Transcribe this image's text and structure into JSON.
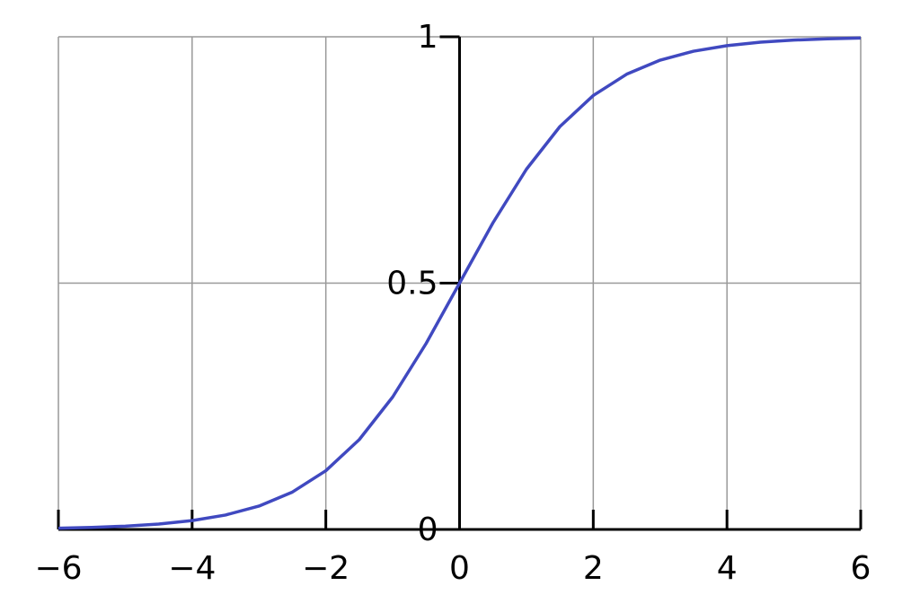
{
  "chart_data": {
    "type": "line",
    "x": [
      -6,
      -5.5,
      -5,
      -4.5,
      -4,
      -3.5,
      -3,
      -2.5,
      -2,
      -1.5,
      -1,
      -0.5,
      0,
      0.5,
      1,
      1.5,
      2,
      2.5,
      3,
      3.5,
      4,
      4.5,
      5,
      5.5,
      6
    ],
    "series": [
      {
        "color": "#4049c0",
        "values": [
          0.0025,
          0.0041,
          0.0067,
          0.011,
          0.018,
          0.0293,
          0.0474,
          0.0759,
          0.1192,
          0.1824,
          0.2689,
          0.3775,
          0.5,
          0.6225,
          0.7311,
          0.8176,
          0.8808,
          0.9241,
          0.9526,
          0.9707,
          0.982,
          0.989,
          0.9933,
          0.9959,
          0.9975
        ]
      }
    ],
    "xlim": [
      -6,
      6
    ],
    "xticks": [
      {
        "value": -6,
        "label": "−6"
      },
      {
        "value": -4,
        "label": "−4"
      },
      {
        "value": -2,
        "label": "−2"
      },
      0,
      2,
      4,
      6
    ],
    "ylim": [
      0,
      1
    ],
    "yticks": [
      0,
      0.5,
      1
    ],
    "grid": true
  }
}
